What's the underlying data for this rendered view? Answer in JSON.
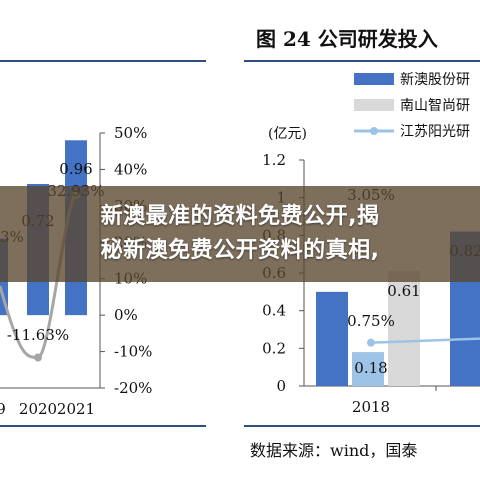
{
  "colors": {
    "blue": "#4472c4",
    "gray": "#d9d9d9",
    "light_blue": "#9dc3e6",
    "rule": "#2f4f7f"
  },
  "banner": {
    "line1": "新澳最准的资料免费公开,揭",
    "line2": "秘新澳免费公开资料的真相,"
  },
  "right_panel": {
    "figure_title": "图 24 公司研发投入",
    "unit": "(亿元)",
    "source": "数据来源：wind，国泰"
  },
  "chart_data": [
    {
      "type": "bar",
      "categories": [
        "9",
        "2020",
        "2021"
      ],
      "series": [
        {
          "values": [
            null,
            0.72,
            0.96
          ]
        },
        {
          "type": "line",
          "values": [
            null,
            -11.63,
            32.93
          ]
        }
      ],
      "ylim": [
        -0.4,
        1.0
      ],
      "y2lim": [
        -20,
        50
      ],
      "y2_ticks": [
        "50%",
        "40%",
        "30%",
        "20%",
        "10%",
        "0%",
        "-10%",
        "-20%"
      ],
      "data_labels": [
        "0.96",
        "0.72",
        "32.93%",
        "-11.63%",
        "3%"
      ]
    },
    {
      "type": "bar",
      "categories": [
        "2018"
      ],
      "legend": [
        "新澳股份研",
        "南山智尚研",
        "江苏阳光研"
      ],
      "series": [
        {
          "name": "新澳股份研",
          "values": [
            0.82
          ]
        },
        {
          "name": "南山智尚研",
          "values": [
            0.61
          ]
        },
        {
          "name": "江苏阳光研",
          "type": "line",
          "values": [
            0.18
          ]
        }
      ],
      "ylim": [
        0,
        1.2
      ],
      "y_ticks": [
        "1.2",
        "1",
        "0.8",
        "0.6",
        "0.4",
        "0.2",
        "0"
      ],
      "data_labels": [
        "0.61",
        "0.75%",
        "0.18",
        "3.05%",
        "0.82"
      ]
    }
  ]
}
